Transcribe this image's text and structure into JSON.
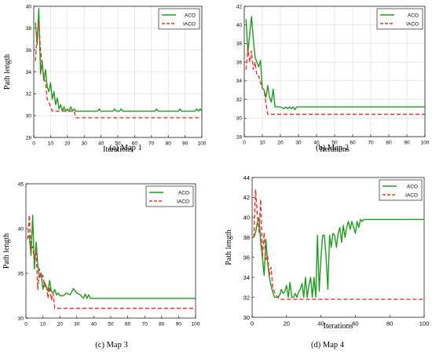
{
  "colors": {
    "aco": "#1f9a1f",
    "iaco": "#e8302a",
    "axis": "#000000",
    "grid": "#d9d9d9"
  },
  "chart_data": [
    {
      "type": "line",
      "xlabel": "Iterations",
      "ylabel": "Path length",
      "xlim": [
        0,
        100
      ],
      "ylim": [
        28,
        40
      ],
      "xticks": [
        0,
        10,
        20,
        30,
        40,
        50,
        60,
        70,
        80,
        90,
        100
      ],
      "yticks": [
        28,
        30,
        32,
        34,
        36,
        38,
        40
      ],
      "grid": true,
      "legend": "top-right",
      "caption": "(a) Map 1",
      "series": [
        {
          "name": "ACO",
          "style": "solid",
          "x": [
            1,
            2,
            3,
            4,
            5,
            6,
            7,
            8,
            9,
            10,
            11,
            12,
            13,
            14,
            15,
            16,
            17,
            18,
            19,
            20,
            21,
            22,
            23,
            24,
            25,
            26,
            38,
            39,
            40,
            47,
            48,
            49,
            51,
            52,
            53,
            72,
            73,
            74,
            86,
            87,
            88,
            96,
            97,
            98,
            99,
            100
          ],
          "y": [
            38.5,
            36.5,
            39.8,
            33.8,
            35.0,
            33.2,
            34.2,
            32.6,
            32.2,
            33.0,
            31.5,
            32.2,
            31.0,
            31.6,
            30.6,
            31.0,
            30.4,
            30.8,
            30.4,
            30.6,
            30.4,
            30.8,
            30.4,
            30.6,
            30.4,
            30.4,
            30.4,
            30.6,
            30.4,
            30.4,
            30.6,
            30.4,
            30.4,
            30.6,
            30.4,
            30.4,
            30.6,
            30.4,
            30.4,
            30.6,
            30.4,
            30.4,
            30.6,
            30.4,
            30.6,
            30.4
          ]
        },
        {
          "name": "IACO",
          "style": "dashed",
          "x": [
            1,
            2,
            3,
            4,
            5,
            6,
            7,
            8,
            9,
            10,
            11,
            12,
            13,
            14,
            15,
            16,
            17,
            18,
            19,
            20,
            21,
            22,
            23,
            24,
            25,
            26,
            100
          ],
          "y": [
            35.0,
            37.5,
            38.5,
            36.0,
            34.5,
            33.5,
            33.0,
            31.5,
            31.2,
            30.8,
            30.4,
            30.4,
            30.4,
            30.4,
            30.4,
            30.4,
            30.4,
            30.4,
            30.4,
            30.4,
            30.4,
            30.4,
            30.4,
            30.4,
            29.8,
            29.8,
            29.8
          ]
        }
      ]
    },
    {
      "type": "line",
      "xlabel": "Iterations",
      "ylabel": "",
      "xlim": [
        0,
        100
      ],
      "ylim": [
        28,
        42
      ],
      "xticks": [
        0,
        10,
        20,
        30,
        40,
        50,
        60,
        70,
        80,
        90,
        100
      ],
      "yticks": [
        28,
        30,
        32,
        34,
        36,
        38,
        40,
        42
      ],
      "grid": true,
      "legend": "top-right",
      "caption": "(b) Map 2",
      "series": [
        {
          "name": "ACO",
          "style": "solid",
          "x": [
            1,
            2,
            3,
            4,
            5,
            6,
            7,
            8,
            9,
            10,
            11,
            12,
            13,
            14,
            15,
            16,
            17,
            18,
            20,
            22,
            23,
            24,
            25,
            26,
            27,
            28,
            29,
            30,
            100
          ],
          "y": [
            40.6,
            37.0,
            39.0,
            40.9,
            38.5,
            36.5,
            36.0,
            35.5,
            36.2,
            33.2,
            33.0,
            32.2,
            33.5,
            32.2,
            31.7,
            33.1,
            31.2,
            31.2,
            31.2,
            31.0,
            31.2,
            31.0,
            31.2,
            31.0,
            31.2,
            30.9,
            31.2,
            31.2,
            31.2
          ]
        },
        {
          "name": "IACO",
          "style": "dashed",
          "x": [
            1,
            2,
            3,
            4,
            5,
            6,
            7,
            8,
            9,
            10,
            11,
            12,
            13,
            14,
            100
          ],
          "y": [
            35.2,
            37.5,
            36.0,
            37.2,
            35.2,
            36.0,
            34.5,
            34.5,
            33.8,
            33.2,
            33.0,
            31.6,
            30.4,
            30.4,
            30.4
          ]
        }
      ]
    },
    {
      "type": "line",
      "xlabel": "",
      "ylabel": "Path length",
      "xlim": [
        0,
        100
      ],
      "ylim": [
        30,
        45
      ],
      "xticks": [
        0,
        10,
        20,
        30,
        40,
        50,
        60,
        70,
        80,
        90,
        100
      ],
      "yticks": [
        30,
        35,
        40,
        45
      ],
      "grid": false,
      "legend": "top-right",
      "caption": "(c) Map 3",
      "series": [
        {
          "name": "ACO",
          "style": "solid",
          "x": [
            1,
            2,
            3,
            4,
            5,
            6,
            7,
            8,
            9,
            10,
            11,
            12,
            13,
            14,
            15,
            16,
            17,
            18,
            19,
            20,
            22,
            24,
            26,
            28,
            30,
            32,
            34,
            35,
            36,
            37,
            38,
            100
          ],
          "y": [
            39.0,
            39.2,
            37.0,
            41.5,
            35.5,
            38.5,
            36.0,
            34.5,
            35.0,
            33.2,
            34.0,
            33.5,
            33.0,
            34.2,
            33.0,
            32.8,
            33.2,
            32.6,
            32.8,
            32.5,
            32.5,
            32.8,
            32.6,
            33.3,
            32.8,
            32.6,
            32.2,
            32.7,
            32.2,
            32.6,
            32.2,
            32.2
          ]
        },
        {
          "name": "IACO",
          "style": "dashed",
          "x": [
            1,
            2,
            3,
            4,
            5,
            6,
            7,
            8,
            9,
            10,
            11,
            12,
            13,
            14,
            15,
            16,
            17,
            18,
            100
          ],
          "y": [
            38.8,
            41.5,
            37.5,
            38.0,
            36.5,
            37.5,
            33.2,
            35.5,
            34.5,
            34.8,
            33.5,
            33.8,
            32.2,
            33.5,
            32.0,
            32.8,
            31.1,
            31.1,
            31.1
          ]
        }
      ]
    },
    {
      "type": "line",
      "xlabel": "Iterations",
      "ylabel": "Path length",
      "xlim": [
        0,
        100
      ],
      "ylim": [
        30,
        44
      ],
      "xticks": [
        0,
        20,
        40,
        60,
        80,
        100
      ],
      "yticks": [
        30,
        32,
        34,
        36,
        38,
        40,
        42,
        44
      ],
      "grid": false,
      "legend": "top-right",
      "caption": "(d) Map 4",
      "series": [
        {
          "name": "ACO",
          "style": "solid",
          "x": [
            1,
            2,
            3,
            4,
            5,
            6,
            7,
            8,
            9,
            10,
            11,
            12,
            13,
            14,
            15,
            16,
            17,
            18,
            19,
            20,
            21,
            22,
            23,
            24,
            25,
            26,
            27,
            28,
            29,
            30,
            31,
            32,
            33,
            34,
            35,
            36,
            37,
            38,
            39,
            40,
            41,
            42,
            43,
            44,
            45,
            46,
            47,
            48,
            49,
            50,
            51,
            52,
            53,
            54,
            55,
            56,
            57,
            58,
            59,
            60,
            61,
            62,
            63,
            64,
            65,
            100
          ],
          "y": [
            38.0,
            38.5,
            39.5,
            40.0,
            37.5,
            36.0,
            34.2,
            37.8,
            35.5,
            34.0,
            33.2,
            32.5,
            32.0,
            32.0,
            32.0,
            32.2,
            32.8,
            32.4,
            32.6,
            33.2,
            32.0,
            33.5,
            32.0,
            32.0,
            32.4,
            32.0,
            32.5,
            32.8,
            33.4,
            32.0,
            34.0,
            32.0,
            33.2,
            34.0,
            32.0,
            34.0,
            32.0,
            38.2,
            32.6,
            36.0,
            38.2,
            38.2,
            36.0,
            32.8,
            38.2,
            37.0,
            38.4,
            38.2,
            37.0,
            38.4,
            39.0,
            37.5,
            39.2,
            38.0,
            39.0,
            39.6,
            38.8,
            39.6,
            39.0,
            38.4,
            39.6,
            39.0,
            39.8,
            39.6,
            39.8,
            39.8
          ]
        },
        {
          "name": "IACO",
          "style": "dashed",
          "x": [
            1,
            2,
            3,
            4,
            5,
            6,
            7,
            8,
            9,
            10,
            11,
            12,
            13,
            14,
            15,
            16,
            17,
            100
          ],
          "y": [
            38.0,
            42.8,
            40.2,
            38.5,
            41.8,
            36.0,
            38.5,
            35.8,
            36.2,
            34.2,
            35.0,
            33.0,
            32.5,
            32.2,
            32.0,
            31.8,
            31.8,
            31.8
          ]
        }
      ]
    }
  ]
}
